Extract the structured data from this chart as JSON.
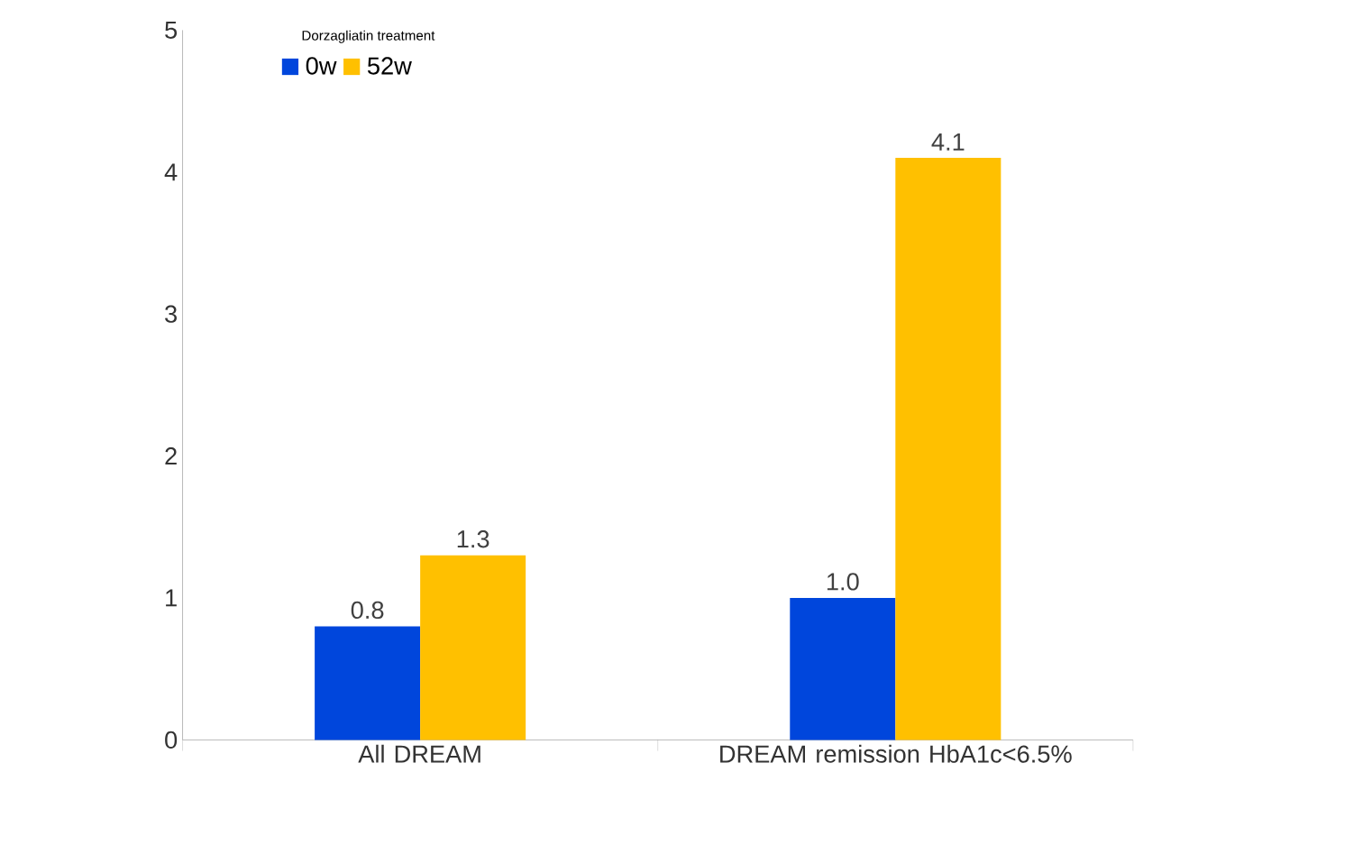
{
  "chart_data": {
    "type": "bar",
    "legend_title": "Dorzagliatin treatment",
    "categories": [
      "All DREAM",
      "DREAM remission HbA1c<6.5%"
    ],
    "series": [
      {
        "name": "0w",
        "color": "#0046dc",
        "values": [
          0.8,
          1.0
        ],
        "value_labels": [
          "0.8",
          "1.0"
        ]
      },
      {
        "name": "52w",
        "color": "#ffc000",
        "values": [
          1.3,
          4.1
        ],
        "value_labels": [
          "1.3",
          "4.1"
        ]
      }
    ],
    "ylim": [
      0,
      5
    ],
    "yticks": [
      0,
      1,
      2,
      3,
      4,
      5
    ],
    "grid": false,
    "legend": "top left"
  }
}
